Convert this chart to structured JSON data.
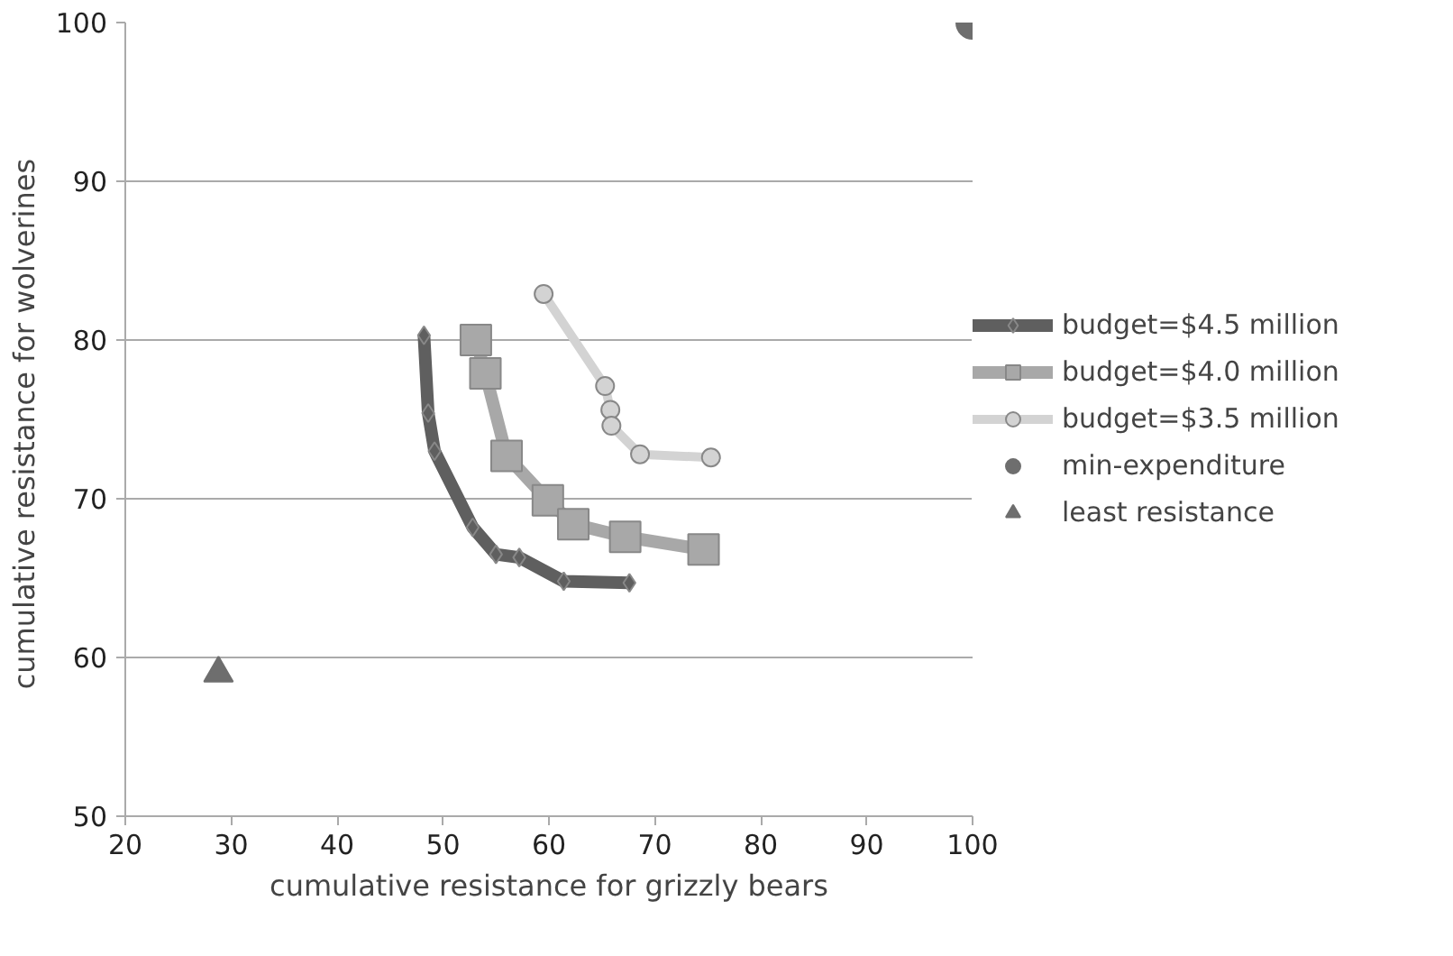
{
  "chart_data": {
    "type": "line",
    "xlabel": "cumulative resistance for grizzly bears",
    "ylabel": "cumulative resistance  for wolverines",
    "xlim": [
      20,
      100
    ],
    "ylim": [
      50,
      100
    ],
    "xticks": [
      20,
      30,
      40,
      50,
      60,
      70,
      80,
      90,
      100
    ],
    "yticks": [
      50,
      60,
      70,
      80,
      90,
      100
    ],
    "grid": "y",
    "legend": "right",
    "series": [
      {
        "name": "budget=$4.5 million",
        "marker": "diamond",
        "color": "#5f5f5f",
        "x": [
          48.2,
          48.6,
          49.2,
          52.8,
          55.0,
          57.2,
          61.4,
          67.6
        ],
        "values": [
          80.3,
          75.4,
          73.0,
          68.2,
          66.5,
          66.3,
          64.8,
          64.7
        ]
      },
      {
        "name": "budget=$4.0 million",
        "marker": "square",
        "color": "#a8a8a8",
        "x": [
          53.1,
          54.0,
          56.0,
          59.9,
          62.3,
          67.2,
          74.6
        ],
        "values": [
          80.0,
          77.9,
          72.7,
          69.9,
          68.4,
          67.6,
          66.8
        ]
      },
      {
        "name": "budget=$3.5 million",
        "marker": "circle",
        "color": "#d3d3d3",
        "x": [
          59.5,
          65.3,
          65.8,
          65.9,
          68.6,
          75.3
        ],
        "values": [
          82.9,
          77.1,
          75.6,
          74.6,
          72.8,
          72.6
        ]
      },
      {
        "name": "min-expenditure",
        "type": "scatter",
        "marker": "circle",
        "color": "#6e6e6e",
        "x": [
          100
        ],
        "values": [
          100
        ]
      },
      {
        "name": "least resistance",
        "type": "scatter",
        "marker": "triangle",
        "color": "#6e6e6e",
        "x": [
          28.8
        ],
        "values": [
          59
        ]
      }
    ]
  }
}
